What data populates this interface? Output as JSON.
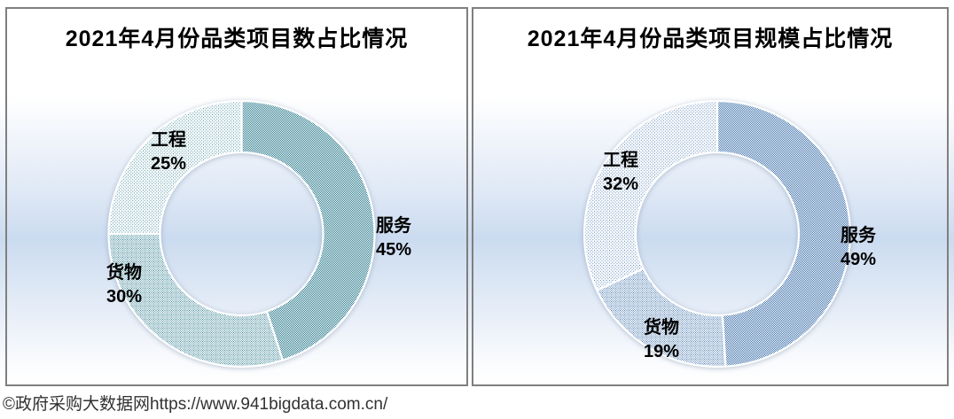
{
  "page": {
    "footer_credit": "©政府采购大数据网https://www.941bigdata.com.cn/"
  },
  "style": {
    "panel_border_color": "#7f7f7f",
    "background_blue": "#cbdbef",
    "label_text_color": "#000000",
    "footer_text_color": "#323232",
    "segment_separator_color": "#ffffff"
  },
  "chart_data": [
    {
      "type": "pie",
      "subtype": "donut",
      "title": "2021年4月份品类项目数占比情况",
      "categories": [
        "服务",
        "货物",
        "工程"
      ],
      "values": [
        45,
        30,
        25
      ],
      "unit": "%",
      "data_labels": [
        "服务 45%",
        "货物 30%",
        "工程 25%"
      ],
      "start_angle_deg": 0,
      "direction": "clockwise",
      "hole_ratio": 0.61,
      "accent_color": "#2e7d8e",
      "pattern_fills": [
        "dense-checker",
        "medium-dots",
        "light-dots"
      ],
      "legend": "none"
    },
    {
      "type": "pie",
      "subtype": "donut",
      "title": "2021年4月份品类项目规模占比情况",
      "categories": [
        "服务",
        "货物",
        "工程"
      ],
      "values": [
        49,
        19,
        32
      ],
      "unit": "%",
      "data_labels": [
        "服务 49%",
        "货物 19%",
        "工程 32%"
      ],
      "start_angle_deg": 0,
      "direction": "clockwise",
      "hole_ratio": 0.61,
      "accent_color": "#4576ad",
      "pattern_fills": [
        "dense-checker",
        "medium-dots",
        "light-dots"
      ],
      "legend": "none"
    }
  ]
}
